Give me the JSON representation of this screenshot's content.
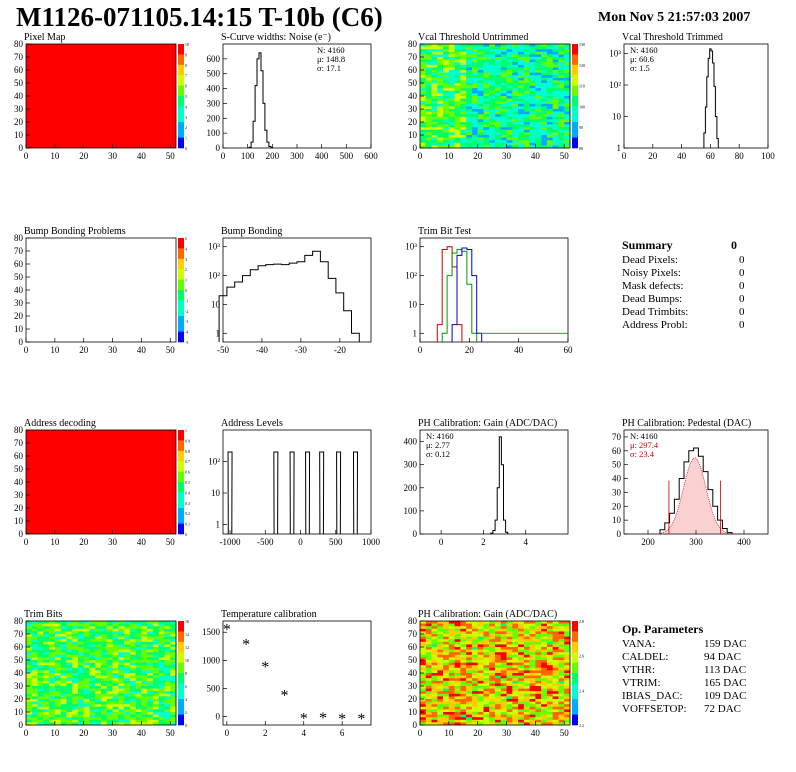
{
  "header": {
    "title": "M1126-071105.14:15 T-10b (C6)",
    "date": "Mon Nov  5 21:57:03 2007"
  },
  "chart_data": [
    {
      "id": "pixel-map",
      "type": "heatmap",
      "title": "Pixel Map",
      "fill": "uniform-red",
      "xlim": [
        0,
        52
      ],
      "ylim": [
        0,
        80
      ],
      "xticks": [
        0,
        10,
        20,
        30,
        40,
        50
      ],
      "yticks": [
        0,
        10,
        20,
        30,
        40,
        50,
        60,
        70,
        80
      ],
      "zticks": [
        "10",
        "9",
        "8",
        "7",
        "6",
        "5",
        "4",
        "3",
        "2",
        "1",
        "0"
      ]
    },
    {
      "id": "scurve-noise",
      "type": "histogram",
      "title": "S-Curve widths: Noise (e⁻)",
      "xlim": [
        0,
        600
      ],
      "ylim": [
        0,
        700
      ],
      "xticks": [
        0,
        100,
        200,
        300,
        400,
        500,
        600
      ],
      "yticks": [
        0,
        100,
        200,
        300,
        400,
        500,
        600
      ],
      "stats": [
        "N: 4160",
        "μ: 148.8",
        "σ: 17.1"
      ],
      "x": [
        110,
        118,
        126,
        134,
        142,
        150,
        158,
        166,
        174,
        182,
        190,
        198
      ],
      "values": [
        5,
        40,
        180,
        420,
        600,
        640,
        520,
        300,
        120,
        40,
        10,
        3
      ]
    },
    {
      "id": "vcal-untrimmed",
      "type": "heatmap",
      "title": "Vcal Threshold Untrimmed",
      "fill": "noise-green-cyan",
      "xlim": [
        0,
        52
      ],
      "ylim": [
        0,
        80
      ],
      "xticks": [
        0,
        10,
        20,
        30,
        40,
        50
      ],
      "yticks": [
        0,
        10,
        20,
        30,
        40,
        50,
        60,
        70,
        80
      ],
      "zticks": [
        "130",
        "120",
        "110",
        "100",
        "90",
        "80"
      ]
    },
    {
      "id": "vcal-trimmed",
      "type": "histogram",
      "title": "Vcal Threshold Trimmed",
      "logy": true,
      "xlim": [
        0,
        100
      ],
      "ylim": [
        1,
        2000
      ],
      "xticks": [
        0,
        20,
        40,
        60,
        80,
        100
      ],
      "yticks": [
        "1",
        "10",
        "10²",
        "10³"
      ],
      "stats": [
        "N: 4160",
        "μ: 60.6",
        "σ:  1.5"
      ],
      "x": [
        56,
        57,
        58,
        59,
        60,
        61,
        62,
        63,
        64,
        65
      ],
      "values": [
        3,
        20,
        180,
        700,
        1400,
        1200,
        500,
        90,
        10,
        2
      ]
    },
    {
      "id": "bump-problems",
      "type": "heatmap",
      "title": "Bump Bonding Problems",
      "fill": "empty",
      "xlim": [
        0,
        52
      ],
      "ylim": [
        0,
        80
      ],
      "xticks": [
        0,
        10,
        20,
        30,
        40,
        50
      ],
      "yticks": [
        0,
        10,
        20,
        30,
        40,
        50,
        60,
        70,
        80
      ],
      "zticks": [
        "5",
        "4",
        "3",
        "2",
        "1",
        "0",
        "-1",
        "-2",
        "-3",
        "-4",
        "-5"
      ]
    },
    {
      "id": "bump-bonding",
      "type": "histogram",
      "title": "Bump Bonding",
      "logy": true,
      "xlim": [
        -50,
        -12
      ],
      "ylim": [
        0.5,
        2000
      ],
      "xticks": [
        -50,
        -40,
        -30,
        -20
      ],
      "yticks": [
        "1",
        "10",
        "10²",
        "10³"
      ],
      "x": [
        -50,
        -48,
        -46,
        -44,
        -42,
        -40,
        -38,
        -36,
        -34,
        -32,
        -30,
        -28,
        -26,
        -24,
        -22,
        -20,
        -18,
        -16
      ],
      "values": [
        20,
        40,
        60,
        100,
        160,
        220,
        240,
        250,
        240,
        270,
        300,
        500,
        700,
        300,
        80,
        25,
        6,
        1
      ]
    },
    {
      "id": "trim-bit-test",
      "type": "histogram",
      "title": "Trim Bit Test",
      "logy": true,
      "xlim": [
        0,
        60
      ],
      "ylim": [
        0.5,
        2000
      ],
      "xticks": [
        0,
        20,
        40,
        60
      ],
      "yticks": [
        "1",
        "10",
        "10²",
        "10³"
      ],
      "series": [
        {
          "color": "#cc0000",
          "x": [
            8,
            10,
            12,
            14,
            16
          ],
          "values": [
            2,
            800,
            1000,
            200,
            2
          ]
        },
        {
          "color": "#009900",
          "x": [
            10,
            12,
            14,
            16,
            18,
            20,
            22
          ],
          "values": [
            1,
            100,
            600,
            800,
            700,
            50,
            1
          ]
        },
        {
          "color": "#0000cc",
          "x": [
            14,
            16,
            18,
            20,
            22,
            24
          ],
          "values": [
            2,
            500,
            900,
            800,
            100,
            1
          ]
        }
      ]
    },
    {
      "id": "address-decoding",
      "type": "heatmap",
      "title": "Address decoding",
      "fill": "uniform-red",
      "xlim": [
        0,
        52
      ],
      "ylim": [
        0,
        80
      ],
      "xticks": [
        0,
        10,
        20,
        30,
        40,
        50
      ],
      "yticks": [
        0,
        10,
        20,
        30,
        40,
        50,
        60,
        70,
        80
      ],
      "zticks": [
        "1",
        "0.9",
        "0.8",
        "0.7",
        "0.6",
        "0.5",
        "0.4",
        "0.3",
        "0.2",
        "0.1",
        "0"
      ]
    },
    {
      "id": "address-levels",
      "type": "histogram",
      "title": "Address Levels",
      "logy": true,
      "xlim": [
        -1100,
        1000
      ],
      "ylim": [
        0.5,
        1000
      ],
      "xticks": [
        -1000,
        -500,
        0,
        500,
        1000
      ],
      "yticks": [
        "1",
        "10",
        "10²"
      ],
      "peaks": [
        -1000,
        -350,
        -120,
        100,
        300,
        540,
        780
      ],
      "peak_value": 200
    },
    {
      "id": "ph-gain",
      "type": "histogram",
      "title": "PH Calibration: Gain (ADC/DAC)",
      "xlim": [
        -1,
        6
      ],
      "ylim": [
        0,
        450
      ],
      "xticks": [
        0,
        2,
        4
      ],
      "yticks": [
        0,
        100,
        200,
        300,
        400
      ],
      "stats": [
        "N: 4160",
        "μ: 2.77",
        "σ: 0.12"
      ],
      "x": [
        2.4,
        2.5,
        2.6,
        2.7,
        2.8,
        2.9,
        3.0,
        3.1
      ],
      "values": [
        4,
        15,
        60,
        200,
        420,
        300,
        60,
        8
      ]
    },
    {
      "id": "ph-pedestal",
      "type": "histogram",
      "title": "PH Calibration: Pedestal (DAC)",
      "xlim": [
        150,
        450
      ],
      "ylim": [
        0,
        75
      ],
      "xticks": [
        200,
        300,
        400
      ],
      "yticks": [
        0,
        10,
        20,
        30,
        40,
        50,
        60,
        70
      ],
      "stats": [
        "N: 4160",
        "μ: 297.4",
        "σ: 23.4"
      ],
      "fit": {
        "mean": 297.4,
        "sigma": 23.4,
        "amp": 55
      },
      "x": [
        230,
        240,
        250,
        260,
        270,
        280,
        290,
        300,
        310,
        320,
        330,
        340,
        350,
        360,
        370
      ],
      "values": [
        3,
        8,
        15,
        25,
        40,
        52,
        60,
        62,
        56,
        45,
        32,
        20,
        10,
        4,
        1
      ]
    },
    {
      "id": "trim-bits",
      "type": "heatmap",
      "title": "Trim Bits",
      "fill": "noise-green",
      "xlim": [
        0,
        52
      ],
      "ylim": [
        0,
        80
      ],
      "xticks": [
        0,
        10,
        20,
        30,
        40,
        50
      ],
      "yticks": [
        0,
        10,
        20,
        30,
        40,
        50,
        60,
        70,
        80
      ],
      "zticks": [
        "16",
        "14",
        "12",
        "10",
        "8",
        "6",
        "4",
        "2",
        "0"
      ]
    },
    {
      "id": "temperature-calibration",
      "type": "scatter",
      "title": "Temperature calibration",
      "xlim": [
        -0.2,
        7.5
      ],
      "ylim": [
        -150,
        1700
      ],
      "xticks": [
        0,
        2,
        4,
        6
      ],
      "yticks": [
        0,
        500,
        1000,
        1500
      ],
      "x": [
        0,
        1,
        2,
        3,
        4,
        5,
        6,
        7
      ],
      "values": [
        1580,
        1320,
        920,
        410,
        0,
        10,
        -5,
        -10
      ]
    },
    {
      "id": "ph-gain-map",
      "type": "heatmap",
      "title": "PH Calibration: Gain (ADC/DAC)",
      "fill": "noise-warm",
      "xlim": [
        0,
        52
      ],
      "ylim": [
        0,
        80
      ],
      "xticks": [
        0,
        10,
        20,
        30,
        40,
        50
      ],
      "yticks": [
        0,
        10,
        20,
        30,
        40,
        50,
        60,
        70,
        80
      ],
      "zticks": [
        "2.8",
        "2.6",
        "2.4",
        "2.2"
      ]
    }
  ],
  "summary": {
    "title": "Summary",
    "total": "0",
    "rows": [
      {
        "label": "Dead Pixels:",
        "value": "0"
      },
      {
        "label": "Noisy Pixels:",
        "value": "0"
      },
      {
        "label": "Mask defects:",
        "value": "0"
      },
      {
        "label": "Dead Bumps:",
        "value": "0"
      },
      {
        "label": "Dead Trimbits:",
        "value": "0"
      },
      {
        "label": "Address Probl:",
        "value": "0"
      }
    ]
  },
  "op_parameters": {
    "title": "Op. Parameters",
    "rows": [
      {
        "label": "VANA:",
        "value": "159 DAC"
      },
      {
        "label": "CALDEL:",
        "value": "94 DAC"
      },
      {
        "label": "VTHR:",
        "value": "113 DAC"
      },
      {
        "label": "VTRIM:",
        "value": "165 DAC"
      },
      {
        "label": "IBIAS_DAC:",
        "value": "109 DAC"
      },
      {
        "label": "VOFFSETOP:",
        "value": "72 DAC"
      }
    ]
  }
}
